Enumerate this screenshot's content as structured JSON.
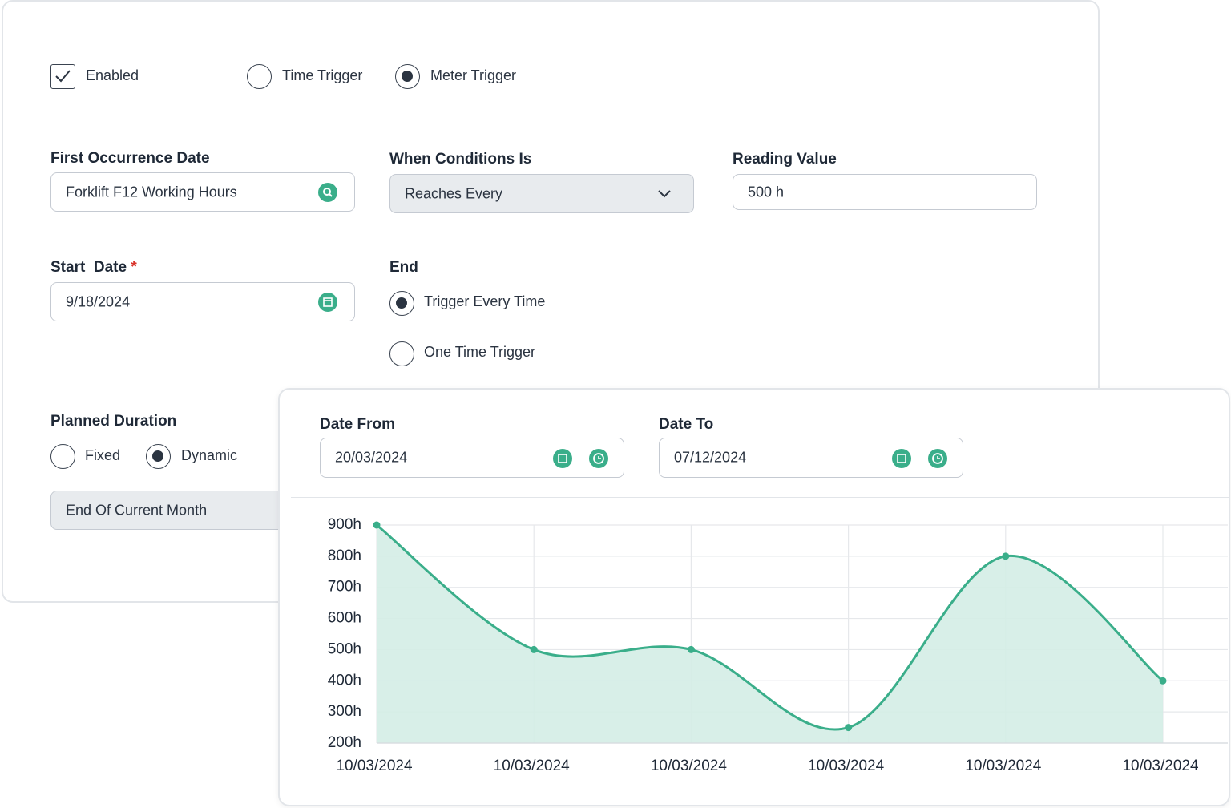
{
  "trigger": {
    "enabled": {
      "label": "Enabled",
      "checked": true
    },
    "options": [
      {
        "label": "Time Trigger",
        "checked": false
      },
      {
        "label": "Meter Trigger",
        "checked": true
      }
    ]
  },
  "fields": {
    "first_occurrence": {
      "label": "First Occurrence Date",
      "value": "Forklift F12 Working Hours"
    },
    "condition": {
      "label": "When Conditions Is",
      "value": "Reaches Every"
    },
    "reading": {
      "label": "Reading Value",
      "value": "500 h"
    },
    "start_date": {
      "label": "Start  Date",
      "required": "*",
      "value": "9/18/2024"
    }
  },
  "end": {
    "label": "End",
    "options": [
      {
        "label": "Trigger Every Time",
        "checked": true
      },
      {
        "label": "One Time Trigger",
        "checked": false
      }
    ]
  },
  "planned_duration": {
    "label": "Planned Duration",
    "options": [
      {
        "label": "Fixed",
        "checked": false
      },
      {
        "label": "Dynamic",
        "checked": true
      }
    ],
    "value": "End Of Current Month"
  },
  "range": {
    "from": {
      "label": "Date From",
      "value": "20/03/2024"
    },
    "to": {
      "label": "Date To",
      "value": "07/12/2024"
    }
  },
  "chart_data": {
    "type": "area",
    "categories": [
      "10/03/2024",
      "10/03/2024",
      "10/03/2024",
      "10/03/2024",
      "10/03/2024",
      "10/03/2024"
    ],
    "values": [
      900,
      500,
      500,
      250,
      800,
      400
    ],
    "color": "#3aae8a",
    "fill": "#d4ede6",
    "ylim": [
      200,
      900
    ],
    "yticks": [
      {
        "value": 200,
        "label": "200h"
      },
      {
        "value": 300,
        "label": "300h"
      },
      {
        "value": 400,
        "label": "400h"
      },
      {
        "value": 500,
        "label": "500h"
      },
      {
        "value": 600,
        "label": "600h"
      },
      {
        "value": 700,
        "label": "700h"
      },
      {
        "value": 800,
        "label": "800h"
      },
      {
        "value": 900,
        "label": "900h"
      }
    ],
    "grid": true
  }
}
